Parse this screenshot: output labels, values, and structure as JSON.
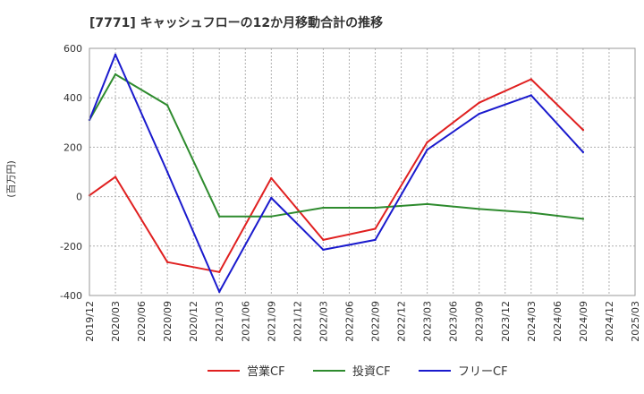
{
  "chart_data": {
    "type": "line",
    "title": "[7771]  キャッシュフローの12か月移動合計の推移",
    "ylabel": "(百万円)",
    "xlabel": "",
    "ylim": [
      -400,
      600
    ],
    "yticks": [
      -400,
      -200,
      0,
      200,
      400,
      600
    ],
    "x": [
      "2019/12",
      "2020/03",
      "2020/06",
      "2020/09",
      "2020/12",
      "2021/03",
      "2021/06",
      "2021/09",
      "2021/12",
      "2022/03",
      "2022/06",
      "2022/09",
      "2022/12",
      "2023/03",
      "2023/06",
      "2023/09",
      "2023/12",
      "2024/03",
      "2024/06",
      "2024/09",
      "2024/12",
      "2025/03"
    ],
    "grid": true,
    "legend_position": "bottom",
    "series": [
      {
        "name": "営業CF",
        "color": "#e02020",
        "values": [
          5,
          80,
          null,
          -265,
          null,
          -305,
          null,
          75,
          null,
          -175,
          null,
          -130,
          null,
          220,
          null,
          380,
          null,
          475,
          null,
          270,
          null,
          null
        ]
      },
      {
        "name": "投資CF",
        "color": "#2e8b2e",
        "values": [
          310,
          495,
          null,
          370,
          null,
          -80,
          null,
          -80,
          null,
          -45,
          null,
          -45,
          null,
          -30,
          null,
          -50,
          null,
          -65,
          null,
          -90,
          null,
          null
        ]
      },
      {
        "name": "フリーCF",
        "color": "#1a1acd",
        "values": [
          310,
          575,
          null,
          100,
          null,
          -385,
          null,
          -5,
          null,
          -215,
          null,
          -175,
          null,
          190,
          null,
          335,
          null,
          410,
          null,
          180,
          null,
          null
        ]
      }
    ]
  }
}
